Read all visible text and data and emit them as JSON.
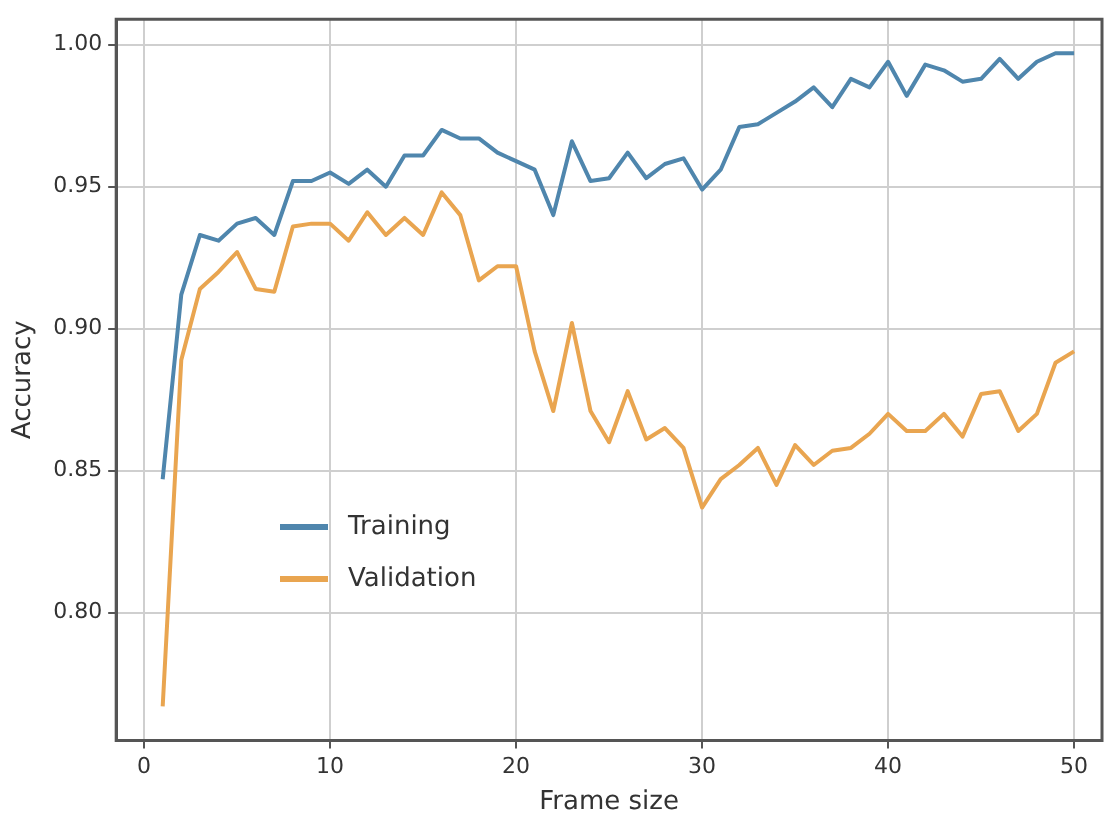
{
  "chart_data": {
    "type": "line",
    "xlabel": "Frame size",
    "ylabel": "Accuracy",
    "x": [
      1,
      2,
      3,
      4,
      5,
      6,
      7,
      8,
      9,
      10,
      11,
      12,
      13,
      14,
      15,
      16,
      17,
      18,
      19,
      20,
      21,
      22,
      23,
      24,
      25,
      26,
      27,
      28,
      29,
      30,
      31,
      32,
      33,
      34,
      35,
      36,
      37,
      38,
      39,
      40,
      41,
      42,
      43,
      44,
      45,
      46,
      47,
      48,
      49,
      50
    ],
    "series": [
      {
        "name": "Training",
        "color": "#4f86ad",
        "values": [
          0.847,
          0.912,
          0.933,
          0.931,
          0.937,
          0.939,
          0.933,
          0.952,
          0.952,
          0.955,
          0.951,
          0.956,
          0.95,
          0.961,
          0.961,
          0.97,
          0.967,
          0.967,
          0.962,
          0.959,
          0.956,
          0.94,
          0.966,
          0.952,
          0.953,
          0.962,
          0.953,
          0.958,
          0.96,
          0.949,
          0.956,
          0.971,
          0.972,
          0.976,
          0.98,
          0.985,
          0.978,
          0.988,
          0.985,
          0.994,
          0.982,
          0.993,
          0.991,
          0.987,
          0.988,
          0.995,
          0.988,
          0.994,
          0.997,
          0.997
        ]
      },
      {
        "name": "Validation",
        "color": "#e9a550",
        "values": [
          0.767,
          0.889,
          0.914,
          0.92,
          0.927,
          0.914,
          0.913,
          0.936,
          0.937,
          0.937,
          0.931,
          0.941,
          0.933,
          0.939,
          0.933,
          0.948,
          0.94,
          0.917,
          0.922,
          0.922,
          0.892,
          0.871,
          0.902,
          0.871,
          0.86,
          0.878,
          0.861,
          0.865,
          0.858,
          0.837,
          0.847,
          0.852,
          0.858,
          0.845,
          0.859,
          0.852,
          0.857,
          0.858,
          0.863,
          0.87,
          0.864,
          0.864,
          0.87,
          0.862,
          0.877,
          0.878,
          0.864,
          0.87,
          0.888,
          0.892
        ]
      }
    ],
    "xlim": [
      -1.5,
      51.5
    ],
    "xticks": [
      0,
      10,
      20,
      30,
      40,
      50
    ],
    "ylim": [
      0.755,
      1.009
    ],
    "yticks": [
      {
        "value": 0.8,
        "label": "0.80"
      },
      {
        "value": 0.85,
        "label": "0.85"
      },
      {
        "value": 0.9,
        "label": "0.90"
      },
      {
        "value": 0.95,
        "label": "0.95"
      },
      {
        "value": 1.0,
        "label": "1.00"
      }
    ],
    "grid": true,
    "legend": "bottom left",
    "marker": "none",
    "line_style": "solid"
  }
}
